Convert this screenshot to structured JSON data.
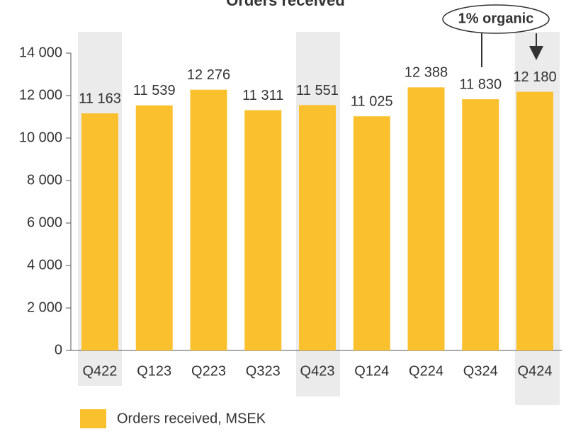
{
  "chart_data": {
    "type": "bar",
    "title": "Orders received",
    "categories": [
      "Q422",
      "Q123",
      "Q223",
      "Q323",
      "Q423",
      "Q124",
      "Q224",
      "Q324",
      "Q424"
    ],
    "series": [
      {
        "name": "Orders received, MSEK",
        "color": "#fbc02d",
        "values": [
          11163,
          11539,
          12276,
          11311,
          11551,
          11025,
          12388,
          11830,
          12180
        ],
        "value_labels": [
          "11 163",
          "11 539",
          "12 276",
          "11 311",
          "11 551",
          "11 025",
          "12 388",
          "11 830",
          "12 180"
        ]
      }
    ],
    "ylim": [
      0,
      14000
    ],
    "yticks": [
      0,
      {
        "value": 2000,
        "label": "2 000"
      },
      {
        "value": 4000,
        "label": "4 000"
      },
      {
        "value": 6000,
        "label": "6 000"
      },
      {
        "value": 8000,
        "label": "8 000"
      },
      {
        "value": 10000,
        "label": "10 000"
      },
      {
        "value": 12000,
        "label": "12 000"
      },
      {
        "value": 14000,
        "label": "14 000"
      }
    ],
    "annotation": "1% organic"
  }
}
